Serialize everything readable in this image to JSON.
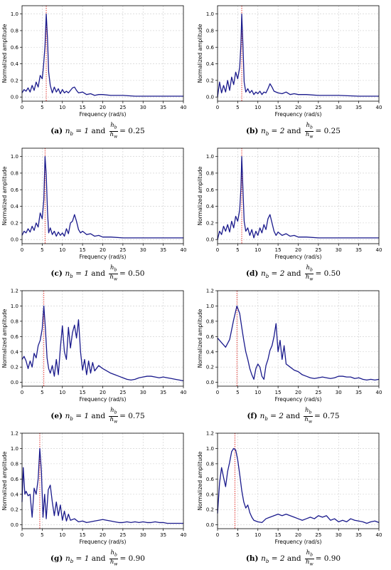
{
  "figure": {
    "panels": [
      {
        "tag": "(a)",
        "nb": "1",
        "ratio": "0.25"
      },
      {
        "tag": "(b)",
        "nb": "2",
        "ratio": "0.25"
      },
      {
        "tag": "(c)",
        "nb": "1",
        "ratio": "0.50"
      },
      {
        "tag": "(d)",
        "nb": "2",
        "ratio": "0.50"
      },
      {
        "tag": "(e)",
        "nb": "1",
        "ratio": "0.75"
      },
      {
        "tag": "(f)",
        "nb": "2",
        "ratio": "0.75"
      },
      {
        "tag": "(g)",
        "nb": "1",
        "ratio": "0.90"
      },
      {
        "tag": "(h)",
        "nb": "2",
        "ratio": "0.90"
      }
    ],
    "caption_parts": {
      "nb_symbol": "n",
      "nb_sub": "b",
      "and_word": "and",
      "ratio_num": "hb",
      "ratio_den": "hw",
      "equals": "="
    },
    "colors": {
      "line": "#1a1a8c",
      "marker": "#e0201a",
      "grid": "#cccccc"
    }
  },
  "chart_data": [
    {
      "type": "line",
      "panel": "a",
      "xlabel": "Frequency (rad/s)",
      "ylabel": "Normalized amplitude",
      "xlim": [
        0,
        40
      ],
      "ylim": [
        -0.05,
        1.1
      ],
      "xticks": [
        0,
        5,
        10,
        15,
        20,
        25,
        30,
        35,
        40
      ],
      "yticks": [
        0.0,
        0.2,
        0.4,
        0.6,
        0.8,
        1.0
      ],
      "grid": true,
      "vline_x": 6.0,
      "x": [
        0,
        0.5,
        1,
        1.5,
        2,
        2.5,
        3,
        3.5,
        4,
        4.5,
        5,
        5.3,
        5.7,
        6,
        6.3,
        6.6,
        7,
        7.5,
        8,
        8.5,
        9,
        9.5,
        10,
        10.5,
        11,
        11.5,
        12,
        12.5,
        13,
        13.5,
        14,
        15,
        16,
        17,
        18,
        19,
        20,
        22,
        25,
        28,
        30,
        35,
        40
      ],
      "y": [
        0.05,
        0.09,
        0.07,
        0.11,
        0.06,
        0.14,
        0.08,
        0.18,
        0.12,
        0.26,
        0.22,
        0.36,
        0.62,
        1.0,
        0.72,
        0.3,
        0.14,
        0.05,
        0.12,
        0.06,
        0.1,
        0.04,
        0.09,
        0.05,
        0.07,
        0.05,
        0.08,
        0.11,
        0.12,
        0.08,
        0.05,
        0.06,
        0.03,
        0.04,
        0.02,
        0.03,
        0.03,
        0.02,
        0.02,
        0.01,
        0.01,
        0.01,
        0.01
      ]
    },
    {
      "type": "line",
      "panel": "b",
      "xlabel": "Frequency (rad/s)",
      "ylabel": "Normalized amplitude",
      "xlim": [
        0,
        40
      ],
      "ylim": [
        -0.05,
        1.1
      ],
      "xticks": [
        0,
        5,
        10,
        15,
        20,
        25,
        30,
        35,
        40
      ],
      "yticks": [
        0.0,
        0.2,
        0.4,
        0.6,
        0.8,
        1.0
      ],
      "grid": true,
      "vline_x": 6.0,
      "x": [
        0,
        0.5,
        1,
        1.5,
        2,
        2.5,
        3,
        3.5,
        4,
        4.5,
        5,
        5.5,
        5.8,
        6,
        6.3,
        6.6,
        7,
        7.5,
        8,
        8.5,
        9,
        9.5,
        10,
        10.5,
        11,
        11.5,
        12,
        12.5,
        13,
        13.5,
        14,
        15,
        16,
        17,
        18,
        19,
        20,
        22,
        25,
        28,
        30,
        35,
        40
      ],
      "y": [
        0.0,
        0.18,
        0.05,
        0.14,
        0.06,
        0.2,
        0.08,
        0.24,
        0.15,
        0.3,
        0.22,
        0.36,
        0.64,
        1.0,
        0.62,
        0.18,
        0.06,
        0.1,
        0.05,
        0.08,
        0.03,
        0.06,
        0.04,
        0.07,
        0.03,
        0.06,
        0.05,
        0.1,
        0.16,
        0.12,
        0.07,
        0.05,
        0.04,
        0.06,
        0.03,
        0.04,
        0.03,
        0.03,
        0.02,
        0.02,
        0.02,
        0.01,
        0.01
      ]
    },
    {
      "type": "line",
      "panel": "c",
      "xlabel": "Frequency (rad/s)",
      "ylabel": "Normalized amplitude",
      "xlim": [
        0,
        40
      ],
      "ylim": [
        -0.05,
        1.1
      ],
      "xticks": [
        0,
        5,
        10,
        15,
        20,
        25,
        30,
        35,
        40
      ],
      "yticks": [
        0.0,
        0.2,
        0.4,
        0.6,
        0.8,
        1.0
      ],
      "grid": true,
      "vline_x": 5.7,
      "x": [
        0,
        0.5,
        1,
        1.5,
        2,
        2.5,
        3,
        3.5,
        4,
        4.5,
        5,
        5.4,
        5.7,
        6,
        6.3,
        6.6,
        7,
        7.5,
        8,
        8.5,
        9,
        9.5,
        10,
        10.5,
        11,
        11.5,
        12,
        12.5,
        13,
        13.5,
        14,
        14.5,
        15,
        16,
        17,
        18,
        19,
        20,
        22,
        25,
        28,
        30,
        35,
        40
      ],
      "y": [
        0.05,
        0.1,
        0.08,
        0.13,
        0.09,
        0.16,
        0.11,
        0.2,
        0.15,
        0.32,
        0.25,
        0.48,
        1.0,
        0.78,
        0.35,
        0.08,
        0.14,
        0.06,
        0.1,
        0.04,
        0.09,
        0.05,
        0.08,
        0.04,
        0.13,
        0.07,
        0.2,
        0.22,
        0.3,
        0.22,
        0.12,
        0.08,
        0.1,
        0.06,
        0.07,
        0.04,
        0.05,
        0.03,
        0.03,
        0.02,
        0.02,
        0.02,
        0.02,
        0.02
      ]
    },
    {
      "type": "line",
      "panel": "d",
      "xlabel": "Frequency (rad/s)",
      "ylabel": "Normalized amplitude",
      "xlim": [
        0,
        40
      ],
      "ylim": [
        -0.05,
        1.1
      ],
      "xticks": [
        0,
        5,
        10,
        15,
        20,
        25,
        30,
        35,
        40
      ],
      "yticks": [
        0.0,
        0.2,
        0.4,
        0.6,
        0.8,
        1.0
      ],
      "grid": true,
      "vline_x": 6.0,
      "x": [
        0,
        0.5,
        1,
        1.5,
        2,
        2.5,
        3,
        3.5,
        4,
        4.5,
        5,
        5.5,
        5.8,
        6,
        6.3,
        6.6,
        7,
        7.5,
        8,
        8.5,
        9,
        9.5,
        10,
        10.5,
        11,
        11.5,
        12,
        12.5,
        13,
        13.5,
        14,
        14.5,
        15,
        16,
        17,
        18,
        19,
        20,
        22,
        25,
        28,
        30,
        35,
        40
      ],
      "y": [
        0.0,
        0.1,
        0.06,
        0.16,
        0.1,
        0.18,
        0.09,
        0.22,
        0.14,
        0.28,
        0.22,
        0.36,
        0.62,
        1.0,
        0.6,
        0.22,
        0.1,
        0.14,
        0.05,
        0.12,
        0.02,
        0.1,
        0.05,
        0.14,
        0.08,
        0.18,
        0.12,
        0.25,
        0.3,
        0.2,
        0.1,
        0.05,
        0.09,
        0.05,
        0.07,
        0.04,
        0.05,
        0.03,
        0.03,
        0.02,
        0.02,
        0.02,
        0.02,
        0.02
      ]
    },
    {
      "type": "line",
      "panel": "e",
      "xlabel": "Frequency (rad/s)",
      "ylabel": "Normalized amplitude",
      "xlim": [
        0,
        40
      ],
      "ylim": [
        -0.05,
        1.2
      ],
      "xticks": [
        0,
        5,
        10,
        15,
        20,
        25,
        30,
        35,
        40
      ],
      "yticks": [
        0.0,
        0.2,
        0.4,
        0.6,
        0.8,
        1.0,
        1.2
      ],
      "grid": true,
      "vline_x": 5.4,
      "x": [
        0,
        0.5,
        1,
        1.5,
        2,
        2.5,
        3,
        3.5,
        4,
        4.5,
        5,
        5.4,
        5.8,
        6.2,
        6.6,
        7,
        7.5,
        8,
        8.5,
        9,
        9.5,
        10,
        10.5,
        11,
        11.5,
        12,
        12.5,
        13,
        13.5,
        14,
        14.5,
        15,
        15.5,
        16,
        16.5,
        17,
        17.5,
        18,
        19,
        20,
        21,
        22,
        23,
        24,
        25,
        26,
        27,
        28,
        29,
        30,
        31,
        32,
        33,
        34,
        35,
        36,
        37,
        38,
        39,
        40
      ],
      "y": [
        0.3,
        0.34,
        0.28,
        0.18,
        0.28,
        0.2,
        0.38,
        0.32,
        0.48,
        0.55,
        0.7,
        1.0,
        0.7,
        0.32,
        0.18,
        0.12,
        0.22,
        0.08,
        0.3,
        0.1,
        0.45,
        0.74,
        0.4,
        0.3,
        0.72,
        0.45,
        0.65,
        0.75,
        0.58,
        0.82,
        0.4,
        0.16,
        0.3,
        0.1,
        0.28,
        0.12,
        0.26,
        0.15,
        0.22,
        0.18,
        0.15,
        0.12,
        0.1,
        0.08,
        0.06,
        0.04,
        0.03,
        0.04,
        0.06,
        0.07,
        0.08,
        0.08,
        0.07,
        0.06,
        0.07,
        0.06,
        0.05,
        0.04,
        0.03,
        0.02
      ]
    },
    {
      "type": "line",
      "panel": "f",
      "xlabel": "Frequency (rad/s)",
      "ylabel": "Normalized amplitude",
      "xlim": [
        0,
        40
      ],
      "ylim": [
        -0.05,
        1.2
      ],
      "xticks": [
        0,
        5,
        10,
        15,
        20,
        25,
        30,
        35,
        40
      ],
      "yticks": [
        0.0,
        0.2,
        0.4,
        0.6,
        0.8,
        1.0,
        1.2
      ],
      "grid": true,
      "vline_x": 4.8,
      "x": [
        0,
        1,
        2,
        3,
        4,
        4.8,
        5.5,
        6,
        6.5,
        7,
        7.5,
        8,
        8.5,
        9,
        9.5,
        10,
        10.5,
        11,
        11.5,
        12,
        12.5,
        13,
        13.5,
        14,
        14.5,
        15,
        15.5,
        16,
        16.5,
        17,
        18,
        19,
        20,
        21,
        22,
        23,
        24,
        25,
        26,
        27,
        28,
        29,
        30,
        31,
        32,
        33,
        34,
        35,
        36,
        37,
        38,
        39,
        40
      ],
      "y": [
        0.58,
        0.52,
        0.46,
        0.56,
        0.82,
        1.0,
        0.9,
        0.72,
        0.55,
        0.4,
        0.3,
        0.18,
        0.1,
        0.04,
        0.18,
        0.24,
        0.2,
        0.08,
        0.04,
        0.22,
        0.3,
        0.42,
        0.48,
        0.6,
        0.77,
        0.4,
        0.55,
        0.3,
        0.48,
        0.24,
        0.2,
        0.16,
        0.14,
        0.1,
        0.08,
        0.06,
        0.05,
        0.06,
        0.07,
        0.06,
        0.05,
        0.06,
        0.08,
        0.08,
        0.07,
        0.07,
        0.05,
        0.06,
        0.04,
        0.03,
        0.04,
        0.03,
        0.04
      ]
    },
    {
      "type": "line",
      "panel": "g",
      "xlabel": "Frequency (rad/s)",
      "ylabel": "Normalized amplitude",
      "xlim": [
        0,
        40
      ],
      "ylim": [
        -0.05,
        1.2
      ],
      "xticks": [
        0,
        5,
        10,
        15,
        20,
        25,
        30,
        35,
        40
      ],
      "yticks": [
        0.0,
        0.2,
        0.4,
        0.6,
        0.8,
        1.0,
        1.2
      ],
      "grid": true,
      "vline_x": 4.4,
      "x": [
        0,
        0.3,
        0.7,
        1,
        1.5,
        2,
        2.5,
        3,
        3.5,
        4,
        4.4,
        4.8,
        5.2,
        5.6,
        6,
        6.5,
        7,
        7.5,
        8,
        8.5,
        9,
        9.5,
        10,
        10.5,
        11,
        11.5,
        12,
        13,
        14,
        15,
        16,
        17,
        18,
        19,
        20,
        21,
        22,
        23,
        24,
        25,
        26,
        27,
        28,
        29,
        30,
        31,
        32,
        33,
        34,
        35,
        36,
        37,
        38,
        39,
        40
      ],
      "y": [
        0.3,
        0.75,
        0.4,
        0.44,
        0.38,
        0.4,
        0.1,
        0.48,
        0.4,
        0.6,
        1.0,
        0.7,
        0.1,
        0.4,
        0.08,
        0.46,
        0.52,
        0.3,
        0.12,
        0.3,
        0.12,
        0.26,
        0.06,
        0.18,
        0.05,
        0.14,
        0.06,
        0.08,
        0.04,
        0.05,
        0.03,
        0.04,
        0.05,
        0.06,
        0.07,
        0.06,
        0.05,
        0.04,
        0.03,
        0.03,
        0.04,
        0.03,
        0.04,
        0.03,
        0.04,
        0.03,
        0.03,
        0.04,
        0.03,
        0.03,
        0.02,
        0.02,
        0.02,
        0.02,
        0.02
      ]
    },
    {
      "type": "line",
      "panel": "h",
      "xlabel": "Frequency (rad/s)",
      "ylabel": "Normalized amplitude",
      "xlim": [
        0,
        40
      ],
      "ylim": [
        -0.05,
        1.2
      ],
      "xticks": [
        0,
        5,
        10,
        15,
        20,
        25,
        30,
        35,
        40
      ],
      "yticks": [
        0.0,
        0.2,
        0.4,
        0.6,
        0.8,
        1.0,
        1.2
      ],
      "grid": true,
      "vline_x": 4.3,
      "x": [
        0,
        0.5,
        1,
        1.5,
        2,
        2.5,
        3,
        3.5,
        4,
        4.5,
        5,
        5.5,
        6,
        6.5,
        7,
        7.5,
        8,
        8.5,
        9,
        10,
        11,
        12,
        13,
        14,
        15,
        16,
        17,
        18,
        19,
        20,
        21,
        22,
        23,
        24,
        25,
        26,
        27,
        28,
        29,
        30,
        31,
        32,
        33,
        34,
        35,
        36,
        37,
        38,
        39,
        40
      ],
      "y": [
        0.15,
        0.55,
        0.75,
        0.62,
        0.5,
        0.7,
        0.82,
        0.96,
        1.0,
        0.98,
        0.85,
        0.66,
        0.45,
        0.3,
        0.22,
        0.26,
        0.16,
        0.1,
        0.06,
        0.04,
        0.03,
        0.08,
        0.1,
        0.12,
        0.14,
        0.12,
        0.14,
        0.12,
        0.1,
        0.08,
        0.06,
        0.08,
        0.1,
        0.08,
        0.12,
        0.1,
        0.12,
        0.06,
        0.08,
        0.04,
        0.06,
        0.04,
        0.08,
        0.06,
        0.05,
        0.04,
        0.02,
        0.04,
        0.05,
        0.03
      ]
    }
  ]
}
